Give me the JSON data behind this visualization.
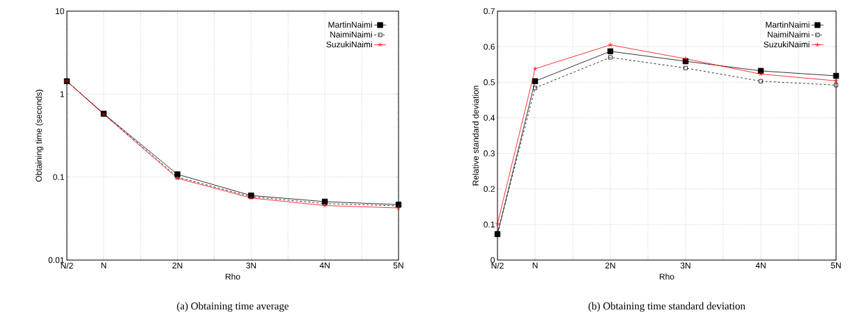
{
  "chart_data": [
    {
      "type": "line",
      "title": "(a) Obtaining time average",
      "xlabel": "Rho",
      "ylabel": "Obtaining time (seconds)",
      "log": "y",
      "categories": [
        "N/2",
        "N",
        null,
        "2N",
        null,
        "3N",
        null,
        "4N",
        null,
        "5N"
      ],
      "ylim": [
        0.01,
        10
      ],
      "yticks": [
        0.01,
        0.1,
        1,
        10
      ],
      "grid": true,
      "legend": "top right",
      "series": [
        {
          "name": "MartinNaimi",
          "color": "#000000",
          "marker": "square",
          "line_style": "solid",
          "values": [
            1.43,
            0.58,
            null,
            0.108,
            null,
            0.06,
            null,
            0.0506,
            null,
            0.0466
          ]
        },
        {
          "name": "NaimiNaimi",
          "color": "#000000",
          "marker": "square-open",
          "line_style": "dashed",
          "values": [
            1.43,
            0.58,
            null,
            0.1,
            null,
            0.058,
            null,
            0.048,
            null,
            0.045
          ]
        },
        {
          "name": "SuzukiNaimi",
          "color": "#ff0000",
          "marker": "cross",
          "line_style": "solid",
          "values": [
            1.43,
            0.57,
            null,
            0.097,
            null,
            0.056,
            null,
            0.0454,
            null,
            0.0425
          ]
        }
      ]
    },
    {
      "type": "line",
      "title": "(b) Obtaining time standard deviation",
      "xlabel": "Rho",
      "ylabel": "Relative standard deviation",
      "categories": [
        "N/2",
        "N",
        null,
        "2N",
        null,
        "3N",
        null,
        "4N",
        null,
        "5N"
      ],
      "ylim": [
        0,
        0.7
      ],
      "yticks": [
        0,
        0.1,
        0.2,
        0.3,
        0.4,
        0.5,
        0.6,
        0.7
      ],
      "grid": true,
      "legend": "top right",
      "series": [
        {
          "name": "MartinNaimi",
          "color": "#000000",
          "marker": "square",
          "line_style": "solid",
          "values": [
            0.073,
            0.503,
            null,
            0.587,
            null,
            0.559,
            null,
            0.532,
            null,
            0.518
          ]
        },
        {
          "name": "NaimiNaimi",
          "color": "#000000",
          "marker": "square-open",
          "line_style": "dashed",
          "values": [
            0.075,
            0.484,
            null,
            0.57,
            null,
            0.54,
            null,
            0.503,
            null,
            0.492
          ]
        },
        {
          "name": "SuzukiNaimi",
          "color": "#ff0000",
          "marker": "cross",
          "line_style": "solid",
          "values": [
            0.102,
            0.538,
            null,
            0.605,
            null,
            0.566,
            null,
            0.523,
            null,
            0.504
          ]
        }
      ]
    }
  ]
}
